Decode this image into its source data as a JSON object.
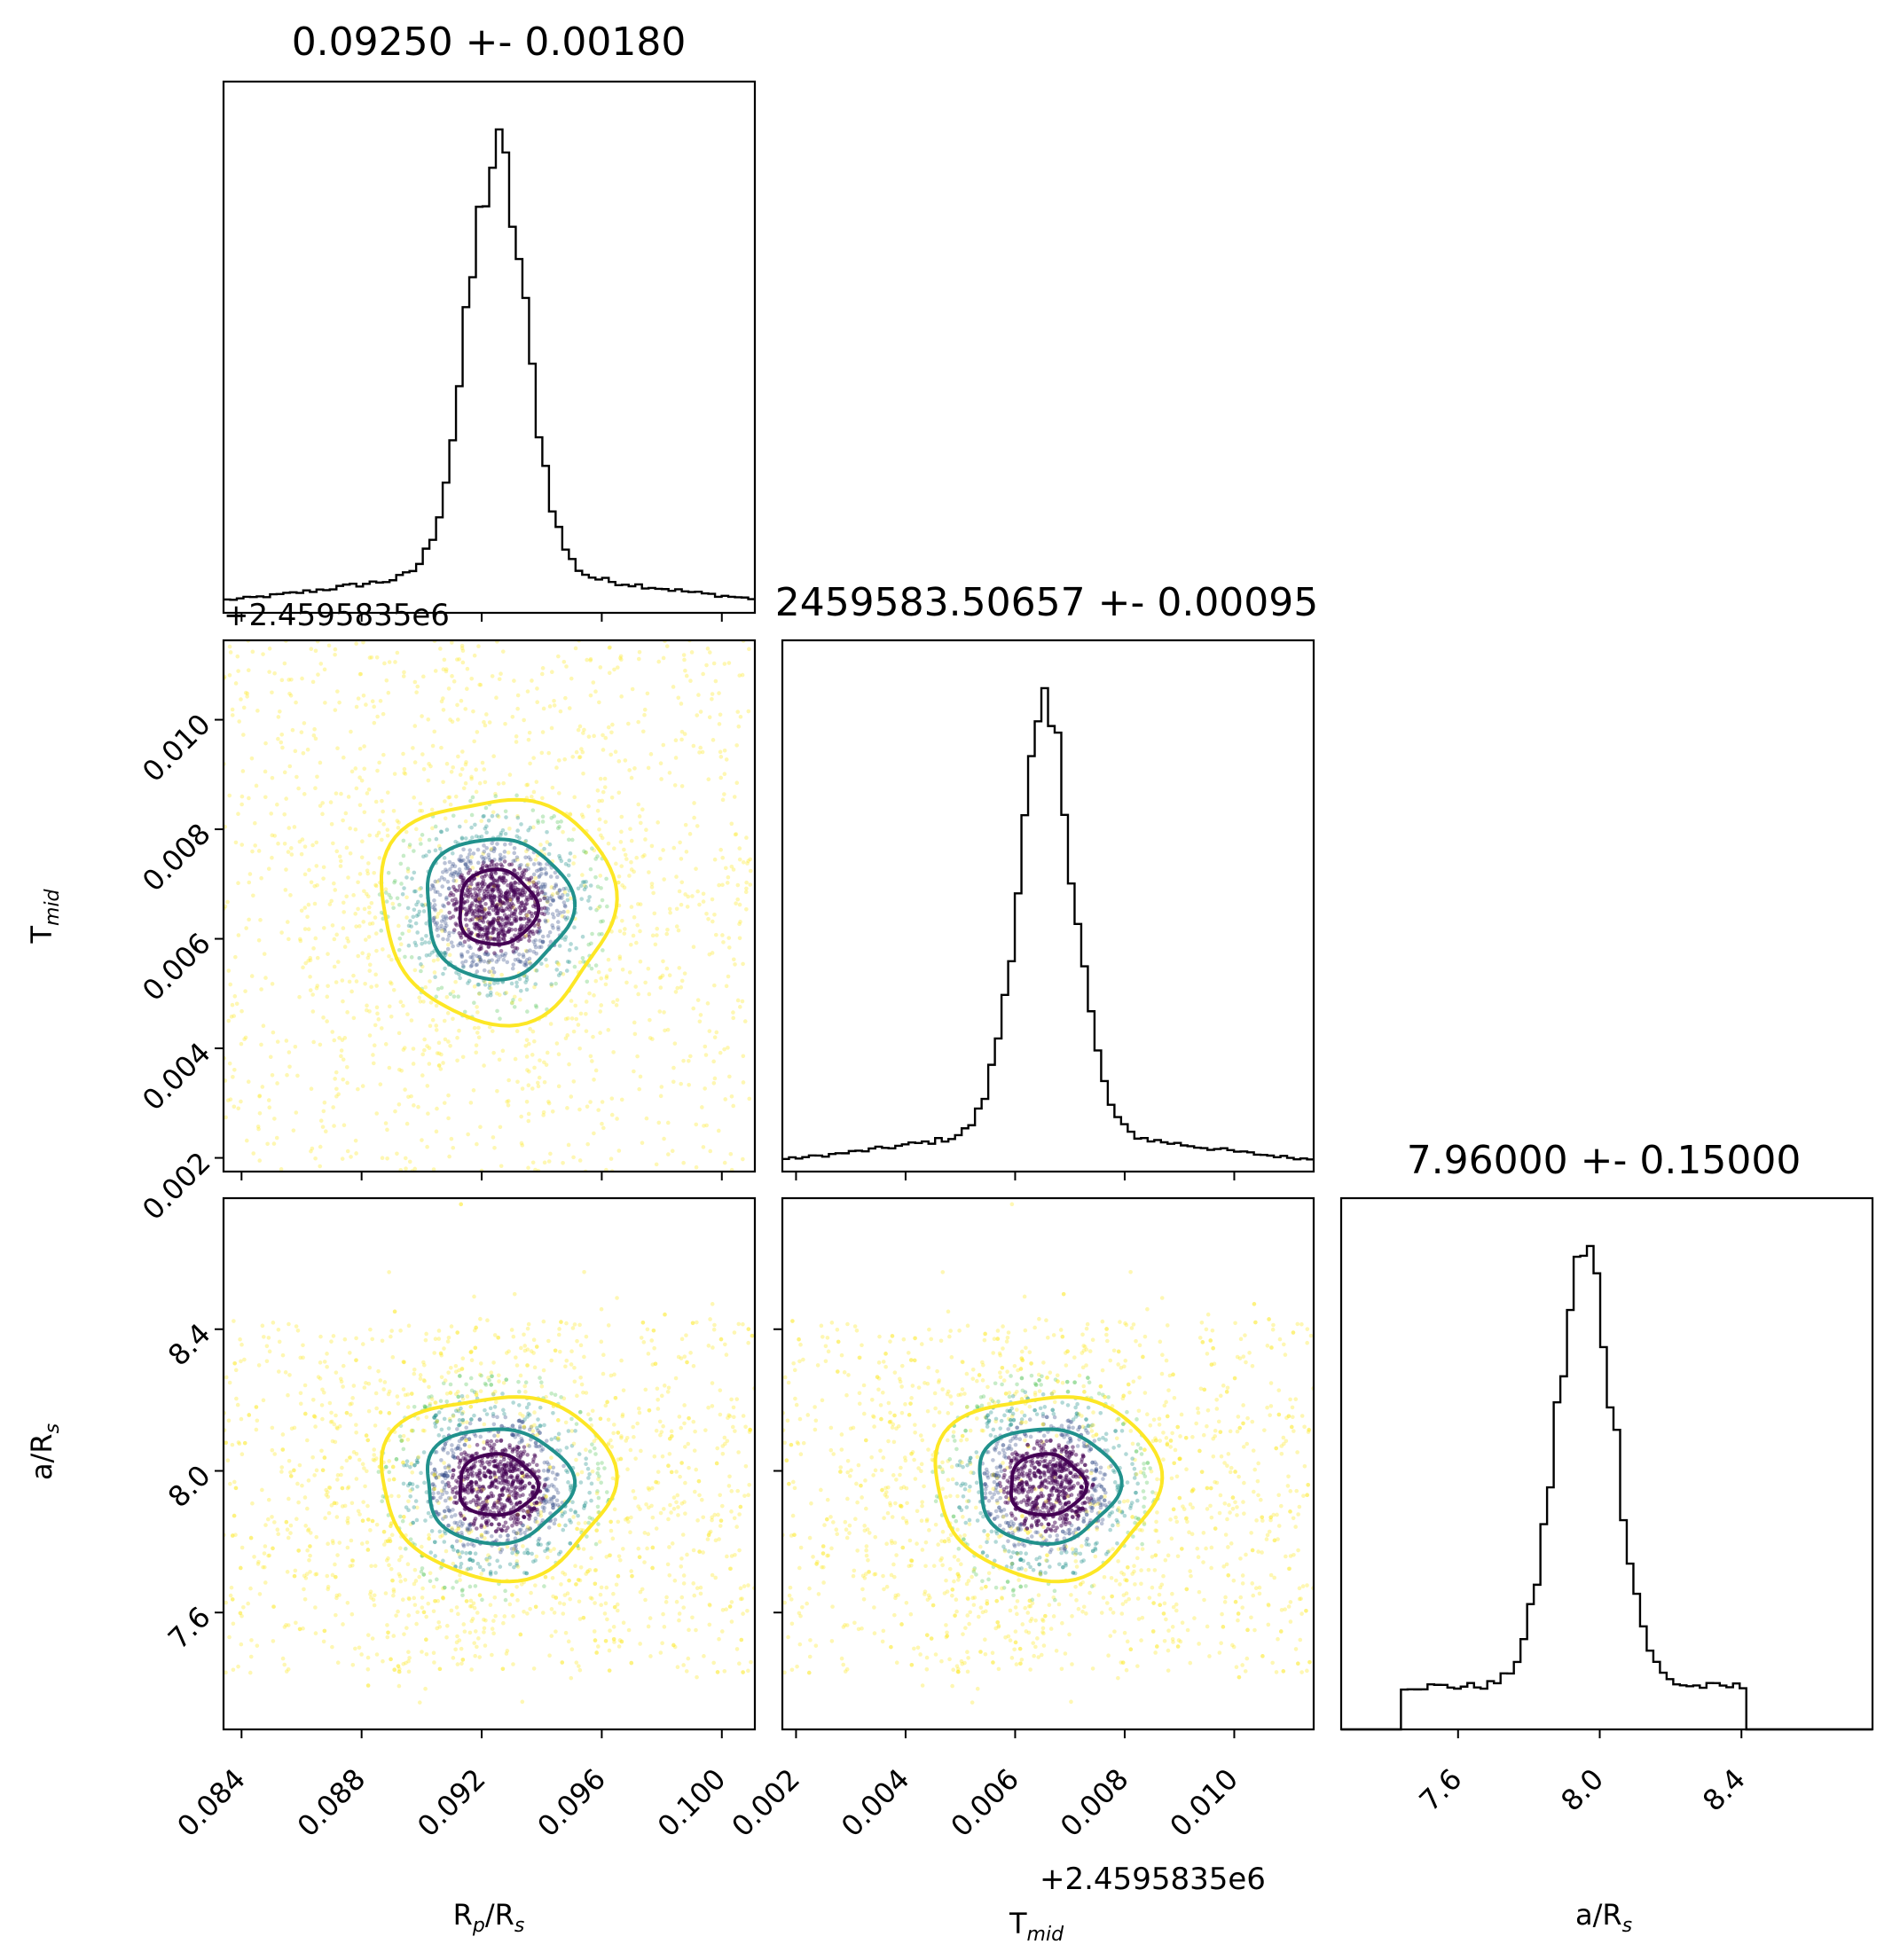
{
  "chart_data": {
    "type": "corner",
    "parameters": [
      {
        "name": "R_p/R_s",
        "label_main": "R",
        "label_sub": "p",
        "label_rest": "/R",
        "label_sub2": "s",
        "range": [
          0.0834,
          0.1011
        ],
        "ticks": [
          "0.084",
          "0.088",
          "0.092",
          "0.096",
          "0.100"
        ],
        "tick_values": [
          0.084,
          0.088,
          0.092,
          0.096,
          0.1
        ],
        "median": 0.0925,
        "sigma": 0.0018
      },
      {
        "name": "T_mid",
        "label_main": "T",
        "label_sub": "mid",
        "range": [
          0.00175,
          0.01145
        ],
        "ticks": [
          "0.002",
          "0.004",
          "0.006",
          "0.008",
          "0.010"
        ],
        "tick_values": [
          0.002,
          0.004,
          0.006,
          0.008,
          0.01
        ],
        "offset": "+2.4595835e6",
        "median": 0.00657,
        "sigma": 0.00095
      },
      {
        "name": "a/R_s",
        "label_main": "a/R",
        "label_sub": "s",
        "range": [
          7.27,
          8.77
        ],
        "ticks": [
          "7.6",
          "8.0",
          "8.4"
        ],
        "tick_values": [
          7.6,
          8.0,
          8.4
        ],
        "median": 7.96,
        "sigma": 0.15
      }
    ],
    "titles": [
      "0.09250 +- 0.00180",
      "2459583.50657 +- 0.00095",
      "7.96000 +- 0.15000"
    ],
    "contour_levels_colors": [
      "#fde725",
      "#21918c",
      "#440154"
    ],
    "scatter_colors": [
      "#fde725",
      "#5ec962",
      "#21918c",
      "#3b528b",
      "#440154"
    ],
    "histogram_type": "step",
    "hist_color": "#000000",
    "grid": false
  }
}
